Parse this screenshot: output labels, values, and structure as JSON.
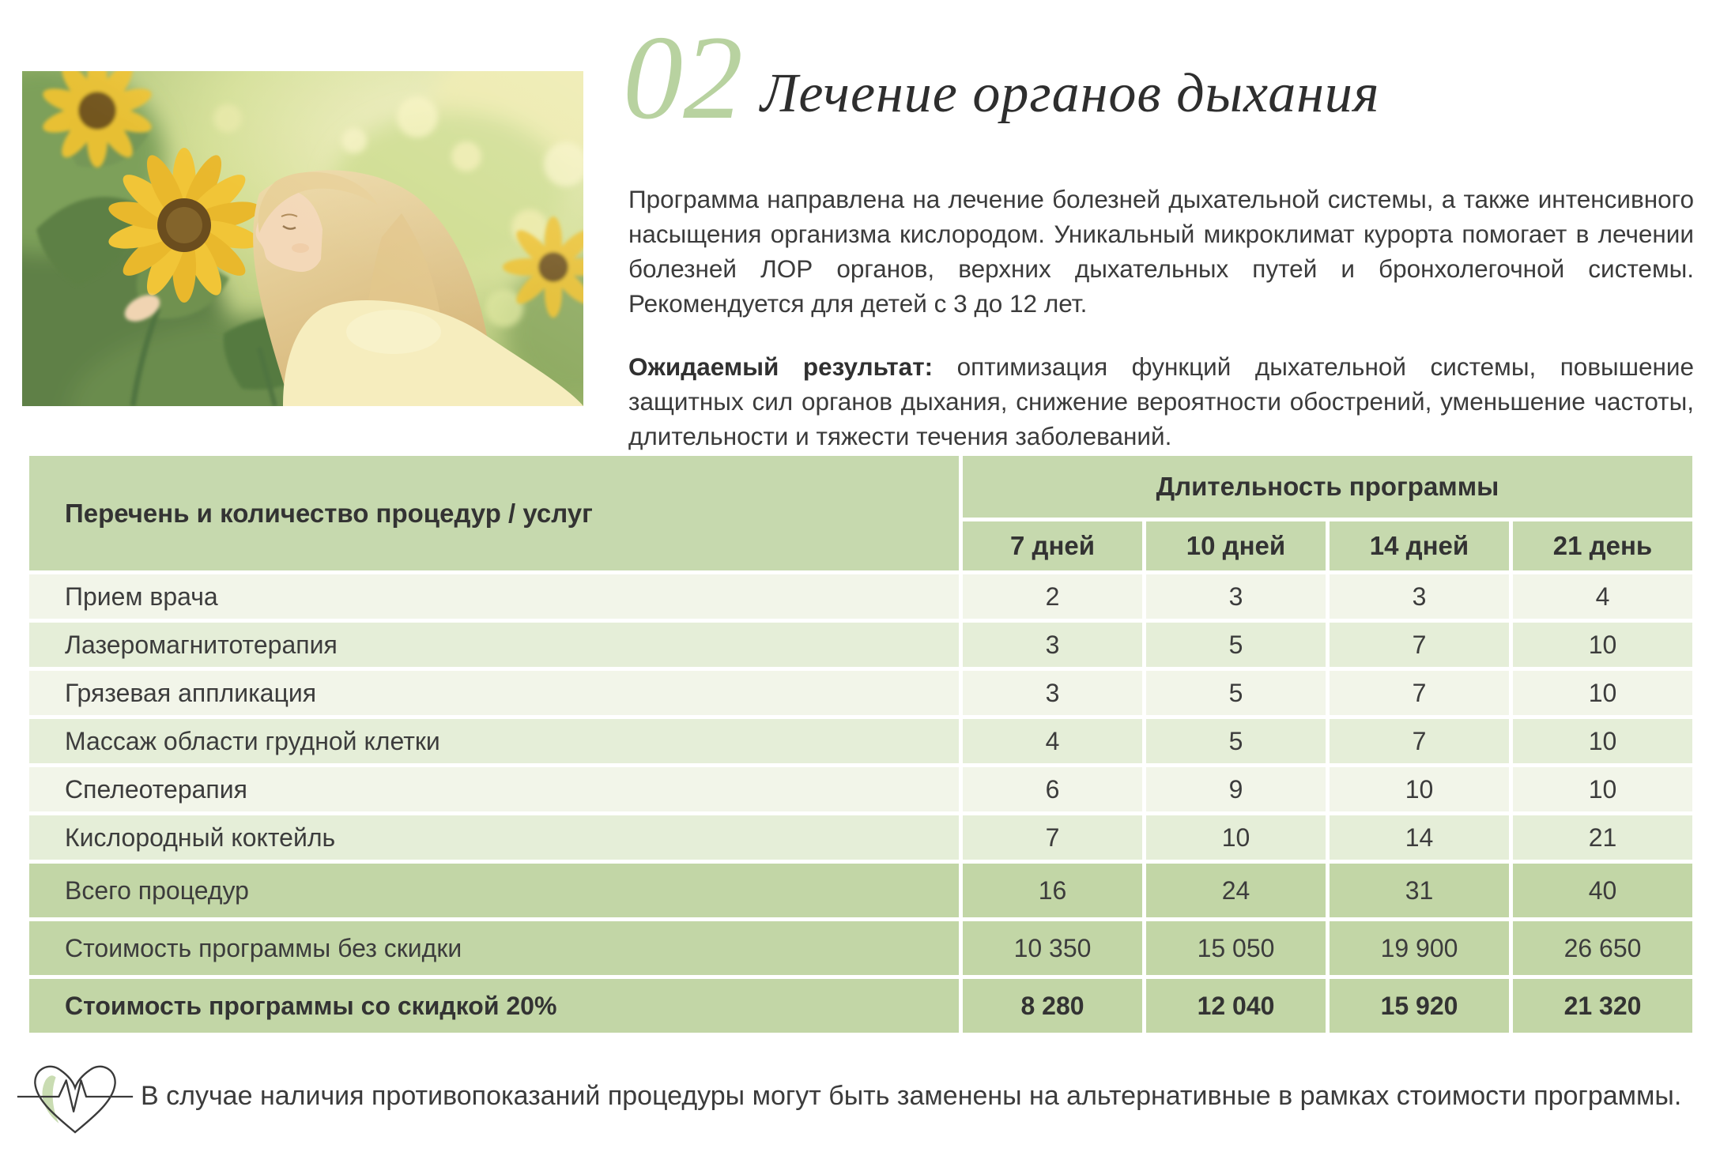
{
  "header": {
    "section_number": "02",
    "title": "Лечение органов дыхания"
  },
  "intro_text": "Программа направлена на лечение болезней дыхательной системы, а также интенсивного насыщения организма кислородом. Уникальный микроклимат курорта помогает в лечении болезней ЛОР органов, верхних дыхательных путей и бронхолегочной системы. Рекомендуется для детей с 3 до 12 лет.",
  "expected": {
    "label": "Ожидаемый результат:",
    "text": " оптимизация функций дыхательной системы, повышение защитных сил органов дыхания, снижение вероятности обострений, уменьшение частоты, длительности и тяжести течения заболеваний."
  },
  "table": {
    "col1_header": "Перечень и количество процедур / услуг",
    "group_header": "Длительность программы",
    "columns": [
      "7 дней",
      "10 дней",
      "14 дней",
      "21 день"
    ],
    "rows": [
      {
        "label": "Прием врача",
        "values": [
          "2",
          "3",
          "3",
          "4"
        ],
        "style": "light"
      },
      {
        "label": "Лазеромагнитотерапия",
        "values": [
          "3",
          "5",
          "7",
          "10"
        ],
        "style": "mid"
      },
      {
        "label": "Грязевая аппликация",
        "values": [
          "3",
          "5",
          "7",
          "10"
        ],
        "style": "light"
      },
      {
        "label": "Массаж области грудной клетки",
        "values": [
          "4",
          "5",
          "7",
          "10"
        ],
        "style": "mid"
      },
      {
        "label": "Спелеотерапия",
        "values": [
          "6",
          "9",
          "10",
          "10"
        ],
        "style": "light"
      },
      {
        "label": "Кислородный коктейль",
        "values": [
          "7",
          "10",
          "14",
          "21"
        ],
        "style": "mid"
      },
      {
        "label": "Всего процедур",
        "values": [
          "16",
          "24",
          "31",
          "40"
        ],
        "style": "total"
      },
      {
        "label": "Стоимость программы без скидки",
        "values": [
          "10 350",
          "15 050",
          "19 900",
          "26 650"
        ],
        "style": "total"
      },
      {
        "label": "Стоимость программы со скидкой 20%",
        "values": [
          "8 280",
          "12 040",
          "15 920",
          "21 320"
        ],
        "style": "total-bold"
      }
    ]
  },
  "footer": {
    "note": "В случае наличия противопоказаний процедуры могут быть заменены на альтернативные в рамках стоимости программы."
  },
  "colors": {
    "accent_green": "#c6d9ae",
    "totals_green": "#c2d6a6",
    "row_light": "#f2f5e9",
    "row_mid": "#e5eed8",
    "number_green": "#b8d2a0",
    "text": "#3b3b3b"
  }
}
